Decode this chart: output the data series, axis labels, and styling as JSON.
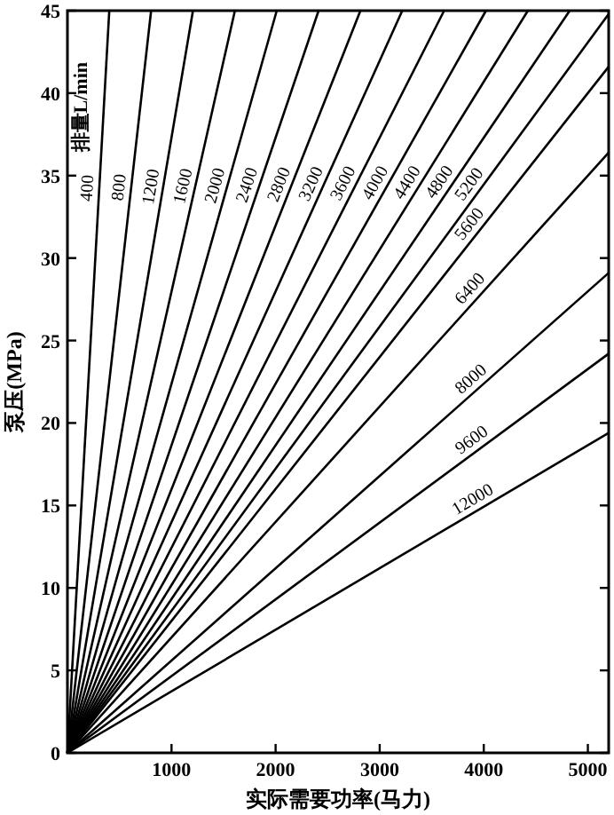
{
  "chart_data": {
    "type": "line",
    "xlabel": "实际需要功率(马力)",
    "ylabel": "泵压(MPa)",
    "annotations": [
      "排量L/min"
    ],
    "xlim": [
      0,
      5200
    ],
    "ylim": [
      0,
      45
    ],
    "xticks": [
      1000,
      2000,
      3000,
      4000,
      5000
    ],
    "yticks": [
      0,
      5,
      10,
      15,
      20,
      25,
      30,
      35,
      40,
      45
    ],
    "series": [
      {
        "name": "400",
        "color": "#000000",
        "x": [
          0,
          402
        ],
        "values": [
          0,
          45
        ]
      },
      {
        "name": "800",
        "color": "#000000",
        "x": [
          0,
          804
        ],
        "values": [
          0,
          45
        ]
      },
      {
        "name": "1200",
        "color": "#000000",
        "x": [
          0,
          1206
        ],
        "values": [
          0,
          45
        ]
      },
      {
        "name": "1600",
        "color": "#000000",
        "x": [
          0,
          1609
        ],
        "values": [
          0,
          45
        ]
      },
      {
        "name": "2000",
        "color": "#000000",
        "x": [
          0,
          2011
        ],
        "values": [
          0,
          45
        ]
      },
      {
        "name": "2400",
        "color": "#000000",
        "x": [
          0,
          2413
        ],
        "values": [
          0,
          45
        ]
      },
      {
        "name": "2800",
        "color": "#000000",
        "x": [
          0,
          2815
        ],
        "values": [
          0,
          45
        ]
      },
      {
        "name": "3200",
        "color": "#000000",
        "x": [
          0,
          3217
        ],
        "values": [
          0,
          45
        ]
      },
      {
        "name": "3600",
        "color": "#000000",
        "x": [
          0,
          3619
        ],
        "values": [
          0,
          45
        ]
      },
      {
        "name": "4000",
        "color": "#000000",
        "x": [
          0,
          4021
        ],
        "values": [
          0,
          45
        ]
      },
      {
        "name": "4400",
        "color": "#000000",
        "x": [
          0,
          4424
        ],
        "values": [
          0,
          45
        ]
      },
      {
        "name": "4800",
        "color": "#000000",
        "x": [
          0,
          4826
        ],
        "values": [
          0,
          45
        ]
      },
      {
        "name": "5200",
        "color": "#000000",
        "x": [
          0,
          5200
        ],
        "values": [
          0,
          44.8
        ]
      },
      {
        "name": "5600",
        "color": "#000000",
        "x": [
          0,
          5200
        ],
        "values": [
          0,
          41.6
        ]
      },
      {
        "name": "6400",
        "color": "#000000",
        "x": [
          0,
          5200
        ],
        "values": [
          0,
          36.4
        ]
      },
      {
        "name": "8000",
        "color": "#000000",
        "x": [
          0,
          5200
        ],
        "values": [
          0,
          29.1
        ]
      },
      {
        "name": "9600",
        "color": "#000000",
        "x": [
          0,
          5200
        ],
        "values": [
          0,
          24.2
        ]
      },
      {
        "name": "12000",
        "color": "#000000",
        "x": [
          0,
          5200
        ],
        "values": [
          0,
          19.4
        ]
      }
    ]
  }
}
